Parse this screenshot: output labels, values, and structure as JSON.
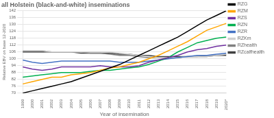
{
  "chart_data": {
    "type": "line",
    "title": "all Holstein (black-and-white) inseminations",
    "xlabel": "Year of insemination",
    "ylabel": "Relative EBV on base 12-2020",
    "categories": [
      "1999",
      "2000",
      "2001",
      "2002",
      "2003",
      "2004",
      "2005",
      "2006",
      "2007",
      "2008",
      "2009",
      "2010",
      "2011",
      "2012",
      "2013",
      "2014",
      "2015",
      "2016",
      "2017",
      "2018",
      "2019",
      "2020*"
    ],
    "series": [
      {
        "name": "RZG",
        "color": "#000000",
        "values": [
          70,
          72,
          74,
          76,
          78,
          80,
          83,
          86,
          89,
          92,
          95,
          99,
          103,
          107,
          111,
          115,
          119,
          124,
          129,
          134,
          138,
          142
        ]
      },
      {
        "name": "RZM",
        "color": "#FFA500",
        "values": [
          78,
          80,
          82,
          84,
          84,
          86,
          87,
          88,
          90,
          92,
          93,
          95,
          97,
          100,
          103,
          107,
          111,
          115,
          120,
          125,
          128,
          131
        ]
      },
      {
        "name": "RZS",
        "color": "#7030A0",
        "values": [
          93,
          91,
          90,
          91,
          93,
          93,
          93,
          93,
          94,
          93,
          93,
          93,
          94,
          97,
          99,
          101,
          103,
          106,
          108,
          109,
          111,
          112
        ]
      },
      {
        "name": "RZN",
        "color": "#00B050",
        "values": [
          84,
          85,
          86,
          87,
          88,
          88,
          88,
          89,
          90,
          90,
          91,
          92,
          93,
          95,
          98,
          101,
          106,
          110,
          114,
          116,
          118,
          119
        ]
      },
      {
        "name": "RZR",
        "color": "#4472C4",
        "values": [
          99,
          97,
          96,
          97,
          98,
          98,
          98,
          98,
          98,
          98,
          97,
          97,
          97,
          98,
          99,
          100,
          101,
          102,
          103,
          103,
          104,
          105
        ]
      },
      {
        "name": "RZKm",
        "color": "#D0D0D0",
        "values": [
          107,
          107,
          107,
          106,
          106,
          106,
          106,
          106,
          106,
          106,
          105,
          104,
          103,
          102,
          101,
          101,
          101,
          102,
          102,
          102,
          103,
          104
        ]
      },
      {
        "name": "RZhealth",
        "color": "#808080",
        "values": [
          107,
          107,
          107,
          106,
          106,
          106,
          106,
          105,
          105,
          104,
          103,
          103,
          102,
          101,
          101,
          101,
          101,
          102,
          102,
          103,
          103,
          104
        ]
      },
      {
        "name": "RZcalfhealth",
        "color": "#404040",
        "values": [
          106,
          106,
          106,
          106,
          106,
          106,
          105,
          105,
          105,
          105,
          104,
          104,
          103,
          103,
          102,
          102,
          102,
          102,
          102,
          102,
          103,
          103
        ]
      }
    ],
    "ylim": [
      70,
      142
    ],
    "yticks": [
      70,
      76,
      82,
      88,
      94,
      100,
      106,
      112,
      118,
      124,
      130,
      136,
      142
    ],
    "grid": true,
    "legend": "right"
  }
}
